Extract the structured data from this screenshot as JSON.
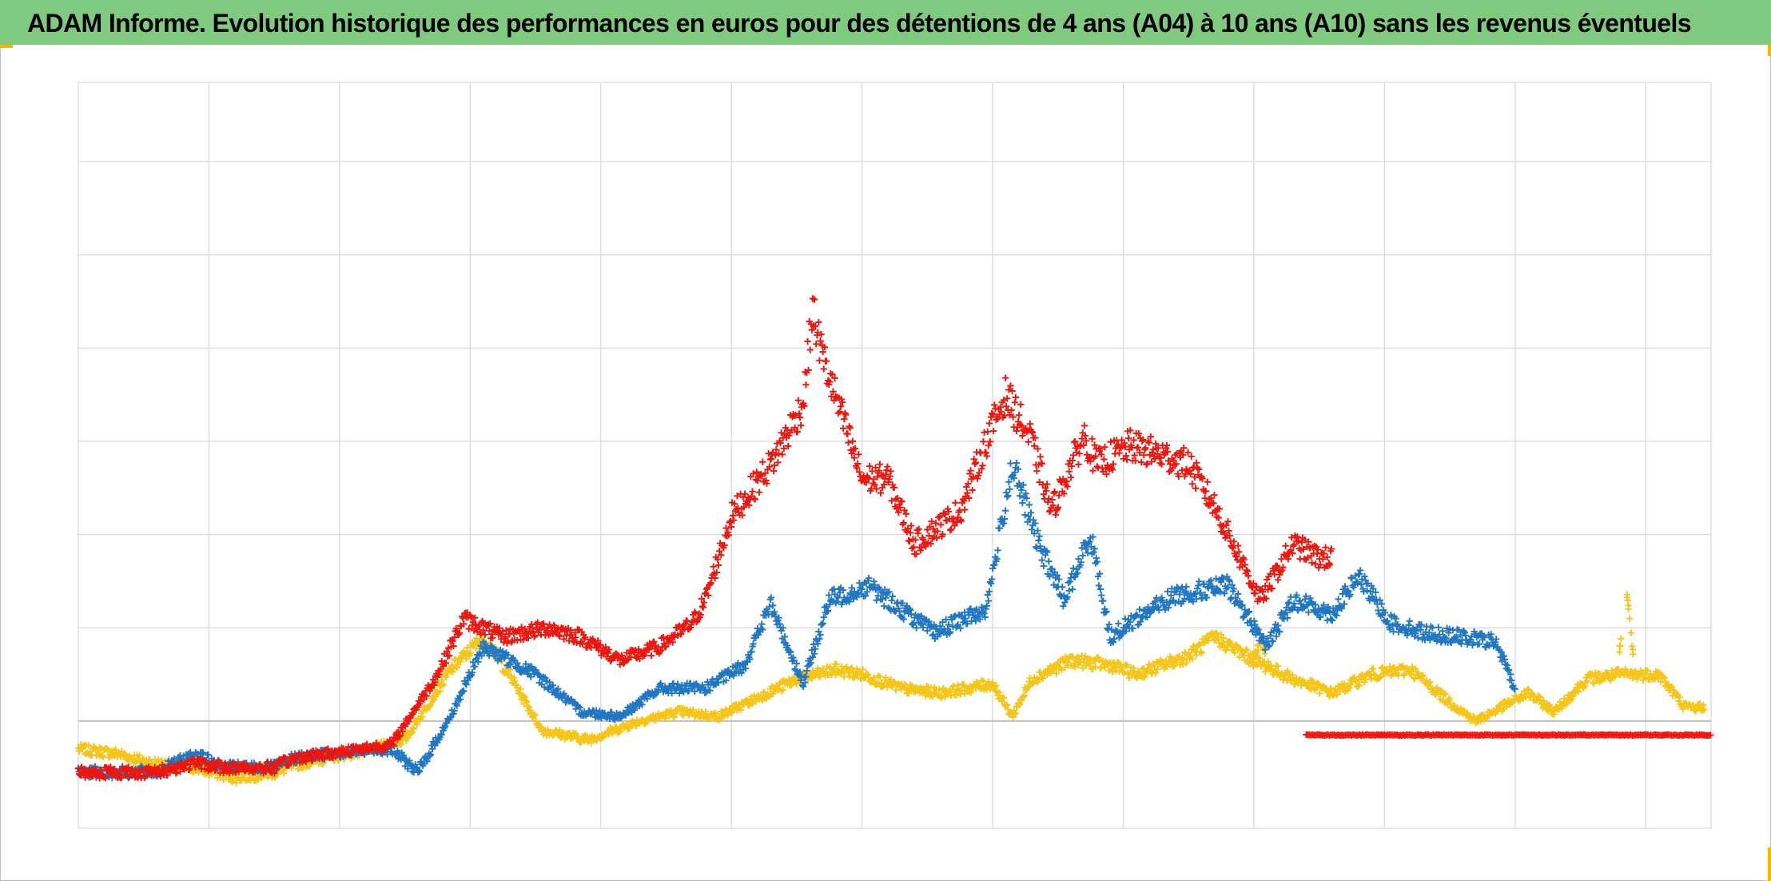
{
  "header": {
    "title": "ADAM Informe. Evolution historique des performances en euros pour des détentions de 4 ans (A04) à 10 ans (A10) sans les revenus éventuels",
    "background_color": "#7fca7f"
  },
  "colors": {
    "corner_accent": "#f5b800",
    "grid": "#d9d9d9",
    "zero_line": "#bfbfbf"
  },
  "chart_data": {
    "type": "scatter",
    "marker": "plus",
    "title": "ADAM Informe. Evolution historique des performances en euros pour des détentions de 4 ans (A04) à 10 ans (A10) sans les revenus éventuels",
    "xlabel": "",
    "ylabel": "",
    "xlim": [
      0,
      12.5
    ],
    "ylim": [
      -1.15,
      6.85
    ],
    "x_gridlines": 13,
    "y_gridlines": [
      -1.15,
      0,
      1,
      2,
      3,
      4,
      5,
      6,
      6.85
    ],
    "zero_line": 0,
    "grid": true,
    "legend": "none",
    "tick_labels_visible": false,
    "series": [
      {
        "color": "#f0140c",
        "x": [
          0,
          0.6,
          0.9,
          1.1,
          1.5,
          1.65,
          1.9,
          2.4,
          2.75,
          2.95,
          3.25,
          3.6,
          3.85,
          4.15,
          4.45,
          4.7,
          4.8,
          5.0,
          5.3,
          5.55,
          5.62,
          5.7,
          6.0,
          6.2,
          6.4,
          6.55,
          6.75,
          6.95,
          7.1,
          7.3,
          7.45,
          7.6,
          7.7,
          7.8,
          8.05,
          8.3,
          8.5,
          8.7,
          9.05,
          9.3,
          9.5
        ],
        "values": [
          -0.55,
          -0.55,
          -0.45,
          -0.5,
          -0.5,
          -0.4,
          -0.35,
          -0.25,
          0.5,
          1.1,
          0.9,
          1.0,
          0.9,
          0.65,
          0.8,
          1.05,
          1.3,
          2.2,
          2.75,
          3.4,
          4.4,
          3.9,
          2.6,
          2.6,
          1.9,
          2.05,
          2.25,
          3.0,
          3.5,
          3.0,
          2.25,
          2.75,
          3.05,
          2.75,
          2.95,
          2.85,
          2.75,
          2.3,
          1.3,
          1.9,
          1.75
        ],
        "x_end": 9.6,
        "flat_segment": {
          "x_start": 9.4,
          "x_end": 12.5,
          "value": -0.15
        }
      },
      {
        "color": "#1f77c4",
        "x": [
          0,
          0.6,
          0.9,
          1.1,
          1.5,
          1.65,
          1.9,
          2.4,
          2.6,
          2.85,
          3.1,
          3.5,
          3.85,
          4.15,
          4.45,
          4.8,
          5.1,
          5.3,
          5.55,
          5.75,
          6.05,
          6.3,
          6.55,
          6.95,
          7.15,
          7.35,
          7.55,
          7.75,
          7.9,
          8.1,
          8.4,
          8.8,
          9.1,
          9.3,
          9.6,
          9.8,
          10.05,
          10.3,
          10.85,
          11.0
        ],
        "values": [
          -0.55,
          -0.55,
          -0.35,
          -0.5,
          -0.5,
          -0.4,
          -0.35,
          -0.3,
          -0.55,
          0.05,
          0.8,
          0.5,
          0.1,
          0.05,
          0.35,
          0.35,
          0.6,
          1.25,
          0.4,
          1.3,
          1.45,
          1.2,
          0.95,
          1.2,
          2.75,
          1.9,
          1.3,
          2.0,
          0.9,
          1.1,
          1.35,
          1.45,
          0.8,
          1.3,
          1.15,
          1.55,
          1.05,
          0.95,
          0.85,
          0.35
        ],
        "x_end": 11.0
      },
      {
        "color": "#f5c518",
        "x": [
          0,
          0.3,
          0.55,
          0.9,
          1.2,
          1.5,
          1.7,
          2.25,
          2.5,
          2.85,
          3.1,
          3.3,
          3.55,
          3.9,
          4.3,
          4.6,
          4.9,
          5.2,
          5.5,
          5.8,
          6.0,
          6.3,
          6.6,
          7.0,
          7.15,
          7.3,
          7.6,
          7.9,
          8.1,
          8.5,
          8.7,
          9.0,
          9.3,
          9.6,
          9.9,
          10.2,
          10.5,
          10.7,
          11.1,
          11.3,
          11.55,
          11.8,
          12.1,
          12.3,
          12.45
        ],
        "values": [
          -0.3,
          -0.35,
          -0.45,
          -0.5,
          -0.6,
          -0.55,
          -0.45,
          -0.3,
          -0.2,
          0.55,
          0.9,
          0.5,
          -0.1,
          -0.2,
          0.0,
          0.1,
          0.05,
          0.25,
          0.45,
          0.55,
          0.5,
          0.35,
          0.3,
          0.4,
          0.05,
          0.45,
          0.65,
          0.6,
          0.5,
          0.7,
          0.9,
          0.65,
          0.45,
          0.3,
          0.5,
          0.55,
          0.2,
          0.0,
          0.3,
          0.1,
          0.45,
          0.5,
          0.5,
          0.15,
          0.15
        ],
        "x_end": 12.45,
        "spikes": [
          {
            "x": 11.85,
            "value": 1.45
          },
          {
            "x": 9.05,
            "value": 0.85
          }
        ]
      }
    ]
  }
}
